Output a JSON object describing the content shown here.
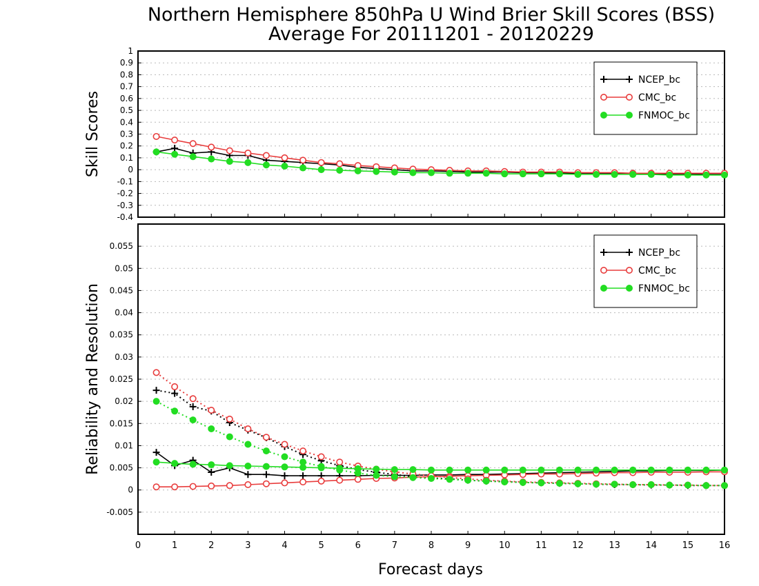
{
  "title": "Northern Hemisphere 850hPa U Wind Brier Skill Scores (BSS)",
  "subtitle": "Average For 20111201 - 20120229",
  "xlabel": "Forecast days",
  "colors": {
    "NCEP_bc": "#000000",
    "CMC_bc": "#e83c3c",
    "FNMOC_bc": "#22dd22"
  },
  "chart_data": [
    {
      "type": "line",
      "panel": "top",
      "ylabel": "Skill Scores",
      "xlim": [
        0,
        16
      ],
      "ylim": [
        -0.4,
        1
      ],
      "x_ticks": [
        0,
        1,
        2,
        3,
        4,
        5,
        6,
        7,
        8,
        9,
        10,
        11,
        12,
        13,
        14,
        15,
        16
      ],
      "y_ticks": [
        "-0.4",
        "-0.3",
        "-0.2",
        "-0.1",
        "0",
        "0.1",
        "0.2",
        "0.3",
        "0.4",
        "0.5",
        "0.6",
        "0.7",
        "0.8",
        "0.9",
        "1"
      ],
      "grid": true,
      "legend": "top-right",
      "x": [
        0.5,
        1,
        1.5,
        2,
        2.5,
        3,
        3.5,
        4,
        4.5,
        5,
        5.5,
        6,
        6.5,
        7,
        7.5,
        8,
        8.5,
        9,
        9.5,
        10,
        10.5,
        11,
        11.5,
        12,
        12.5,
        13,
        13.5,
        14,
        14.5,
        15,
        15.5,
        16
      ],
      "series": [
        {
          "name": "NCEP_bc",
          "style": "solid",
          "marker": "plus",
          "values": [
            0.15,
            0.18,
            0.14,
            0.15,
            0.12,
            0.12,
            0.08,
            0.07,
            0.06,
            0.05,
            0.04,
            0.02,
            0.01,
            0.0,
            -0.01,
            -0.01,
            -0.015,
            -0.02,
            -0.02,
            -0.02,
            -0.025,
            -0.025,
            -0.03,
            -0.03,
            -0.03,
            -0.03,
            -0.03,
            -0.035,
            -0.035,
            -0.035,
            -0.04,
            -0.04
          ]
        },
        {
          "name": "CMC_bc",
          "style": "solid",
          "marker": "circle-open",
          "values": [
            0.28,
            0.25,
            0.22,
            0.19,
            0.16,
            0.14,
            0.12,
            0.1,
            0.08,
            0.06,
            0.05,
            0.035,
            0.025,
            0.015,
            0.005,
            0.0,
            -0.005,
            -0.01,
            -0.01,
            -0.015,
            -0.02,
            -0.02,
            -0.02,
            -0.025,
            -0.025,
            -0.025,
            -0.03,
            -0.03,
            -0.03,
            -0.03,
            -0.03,
            -0.03
          ]
        },
        {
          "name": "FNMOC_bc",
          "style": "solid",
          "marker": "circle-filled",
          "values": [
            0.15,
            0.13,
            0.11,
            0.09,
            0.07,
            0.06,
            0.04,
            0.03,
            0.015,
            0.0,
            -0.005,
            -0.01,
            -0.015,
            -0.02,
            -0.025,
            -0.025,
            -0.03,
            -0.03,
            -0.03,
            -0.035,
            -0.035,
            -0.035,
            -0.035,
            -0.04,
            -0.04,
            -0.04,
            -0.04,
            -0.04,
            -0.045,
            -0.045,
            -0.045,
            -0.045
          ]
        }
      ]
    },
    {
      "type": "line",
      "panel": "bottom",
      "ylabel": "Reliability and Resolution",
      "xlim": [
        0,
        16
      ],
      "ylim": [
        -0.01,
        0.06
      ],
      "x_ticks": [
        0,
        1,
        2,
        3,
        4,
        5,
        6,
        7,
        8,
        9,
        10,
        11,
        12,
        13,
        14,
        15,
        16
      ],
      "y_ticks": [
        "-0.005",
        "0",
        "0.005",
        "0.01",
        "0.015",
        "0.02",
        "0.025",
        "0.03",
        "0.035",
        "0.04",
        "0.045",
        "0.05",
        "0.055"
      ],
      "grid": true,
      "legend": "top-right",
      "legend_entries": [
        "NCEP_bc",
        "CMC_bc",
        "FNMOC_bc"
      ],
      "x": [
        0.5,
        1,
        1.5,
        2,
        2.5,
        3,
        3.5,
        4,
        4.5,
        5,
        5.5,
        6,
        6.5,
        7,
        7.5,
        8,
        8.5,
        9,
        9.5,
        10,
        10.5,
        11,
        11.5,
        12,
        12.5,
        13,
        13.5,
        14,
        14.5,
        15,
        15.5,
        16
      ],
      "series": [
        {
          "group": "NCEP_bc",
          "style": "solid",
          "marker": "plus",
          "values": [
            0.0085,
            0.0055,
            0.0067,
            0.004,
            0.005,
            0.0035,
            0.0035,
            0.0032,
            0.0032,
            0.0032,
            0.0032,
            0.0032,
            0.0033,
            0.0033,
            0.0033,
            0.0034,
            0.0034,
            0.0035,
            0.0035,
            0.0036,
            0.0037,
            0.0038,
            0.0039,
            0.004,
            0.0041,
            0.0042,
            0.0043,
            0.0043,
            0.0044,
            0.0044,
            0.0044,
            0.0045
          ]
        },
        {
          "group": "NCEP_bc",
          "style": "dotted",
          "marker": "plus",
          "values": [
            0.0225,
            0.0218,
            0.0188,
            0.0178,
            0.0152,
            0.0135,
            0.0118,
            0.0098,
            0.008,
            0.0066,
            0.0055,
            0.0046,
            0.004,
            0.0035,
            0.003,
            0.0027,
            0.0025,
            0.0022,
            0.002,
            0.0019,
            0.0017,
            0.0016,
            0.0015,
            0.0014,
            0.0013,
            0.0012,
            0.0012,
            0.0011,
            0.0011,
            0.001,
            0.001,
            0.001
          ]
        },
        {
          "group": "CMC_bc",
          "style": "solid",
          "marker": "circle-open",
          "values": [
            0.0007,
            0.0007,
            0.0008,
            0.0009,
            0.001,
            0.0012,
            0.0014,
            0.0016,
            0.0018,
            0.002,
            0.0022,
            0.0024,
            0.0026,
            0.0027,
            0.0029,
            0.003,
            0.0031,
            0.0032,
            0.0033,
            0.0034,
            0.0035,
            0.0036,
            0.0036,
            0.0037,
            0.0038,
            0.0039,
            0.0039,
            0.004,
            0.004,
            0.004,
            0.0041,
            0.0041
          ]
        },
        {
          "group": "CMC_bc",
          "style": "dotted",
          "marker": "circle-open",
          "values": [
            0.0265,
            0.0233,
            0.0206,
            0.018,
            0.016,
            0.0138,
            0.0119,
            0.0103,
            0.0088,
            0.0075,
            0.0063,
            0.0054,
            0.0047,
            0.0041,
            0.0036,
            0.0032,
            0.0028,
            0.0025,
            0.0022,
            0.002,
            0.0018,
            0.0017,
            0.0016,
            0.0015,
            0.0014,
            0.0013,
            0.0012,
            0.0012,
            0.0011,
            0.0011,
            0.001,
            0.001
          ]
        },
        {
          "group": "FNMOC_bc",
          "style": "solid",
          "marker": "circle-filled",
          "values": [
            0.0063,
            0.006,
            0.0058,
            0.0057,
            0.0055,
            0.0054,
            0.0053,
            0.0052,
            0.0051,
            0.005,
            0.0049,
            0.0048,
            0.0047,
            0.0046,
            0.0046,
            0.0045,
            0.0045,
            0.0045,
            0.0045,
            0.0045,
            0.0045,
            0.0045,
            0.0045,
            0.0045,
            0.0045,
            0.0045,
            0.0045,
            0.0045,
            0.0045,
            0.0045,
            0.0045,
            0.0045
          ]
        },
        {
          "group": "FNMOC_bc",
          "style": "dotted",
          "marker": "circle-filled",
          "values": [
            0.02,
            0.0178,
            0.0158,
            0.0138,
            0.012,
            0.0103,
            0.0088,
            0.0075,
            0.0063,
            0.0053,
            0.0045,
            0.0038,
            0.0033,
            0.003,
            0.0028,
            0.0026,
            0.0024,
            0.0022,
            0.002,
            0.0018,
            0.0017,
            0.0016,
            0.0015,
            0.0014,
            0.0013,
            0.0013,
            0.0012,
            0.0012,
            0.0011,
            0.0011,
            0.001,
            0.001
          ]
        }
      ]
    }
  ]
}
